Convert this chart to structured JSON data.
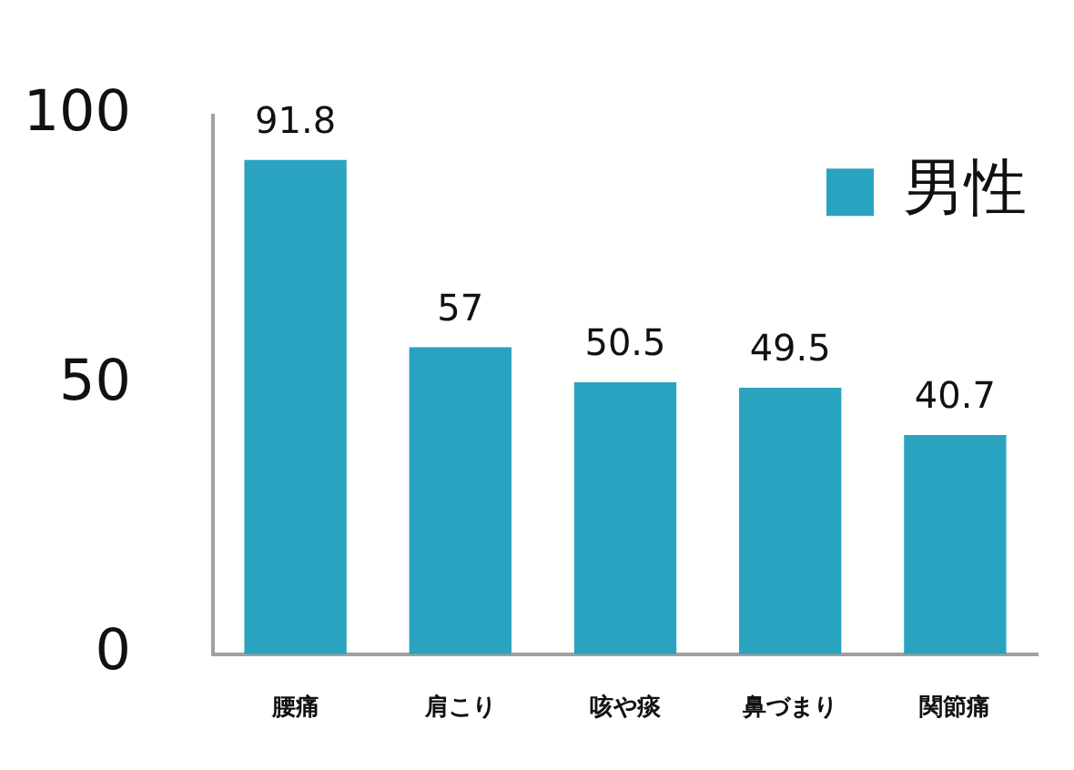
{
  "chart_data": {
    "type": "bar",
    "categories": [
      "腰痛",
      "肩こり",
      "咳や痰",
      "鼻づまり",
      "関節痛"
    ],
    "series": [
      {
        "name": "男性",
        "color": "#2aa3c0",
        "values": [
          91.8,
          57,
          50.5,
          49.5,
          40.7
        ]
      }
    ],
    "ylim": [
      0,
      100
    ],
    "yticks": [
      0,
      50,
      100
    ],
    "data_labels": true,
    "legend": "top right"
  }
}
